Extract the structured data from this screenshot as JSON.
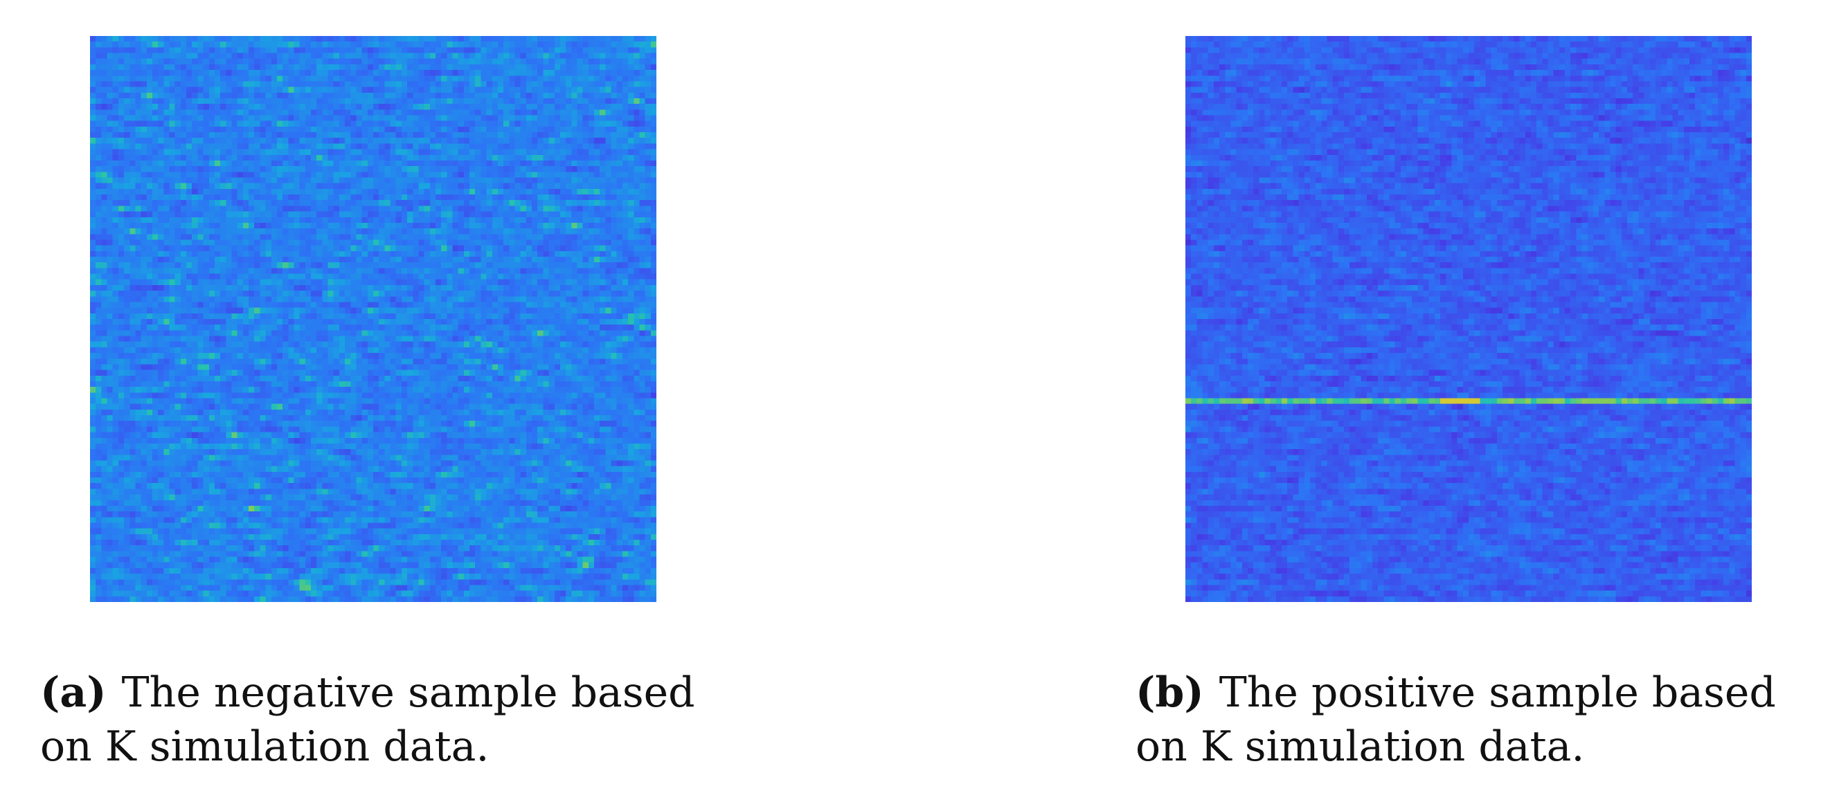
{
  "panels": [
    {
      "marker": "(a)",
      "caption_line1": "The negative sample based",
      "caption_line2": "on K simulation data.",
      "sample_type": "negative",
      "colormap": "parula"
    },
    {
      "marker": "(b)",
      "caption_line1": "The positive sample based",
      "caption_line2": "on K simulation data.",
      "sample_type": "positive",
      "colormap": "parula"
    }
  ],
  "colors": {
    "background": "#ffffff",
    "colormap_low": "#3e26a8",
    "colormap_mid": "#1fb7d8",
    "colormap_high": "#f9fb0e"
  }
}
